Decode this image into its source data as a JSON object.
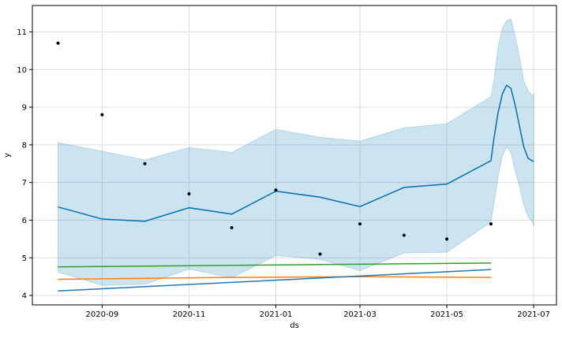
{
  "chart_data": {
    "type": "line",
    "title": "",
    "xlabel": "ds",
    "ylabel": "y",
    "x_tick_labels": [
      "2020-09",
      "2020-11",
      "2021-01",
      "2021-03",
      "2021-05",
      "2021-07"
    ],
    "y_tick_labels": [
      "4",
      "5",
      "6",
      "7",
      "8",
      "9",
      "10",
      "11"
    ],
    "xlim": [
      "2020-07-14",
      "2021-07-17"
    ],
    "ylim": [
      3.75,
      11.7
    ],
    "grid": true,
    "colors": {
      "observed": "#000000",
      "forecast_line": "#0072B2",
      "forecast_band": "#0072B2",
      "line_blue": "#1f77b4",
      "line_orange": "#ff7f0e",
      "line_green": "#2ca02c",
      "grid": "#dddddd"
    },
    "observed_points": [
      {
        "x": "2020-08-01",
        "y": 10.7
      },
      {
        "x": "2020-09-01",
        "y": 8.8
      },
      {
        "x": "2020-10-01",
        "y": 7.5
      },
      {
        "x": "2020-11-01",
        "y": 6.7
      },
      {
        "x": "2020-12-01",
        "y": 5.8
      },
      {
        "x": "2021-01-01",
        "y": 6.8
      },
      {
        "x": "2021-02-01",
        "y": 5.1
      },
      {
        "x": "2021-03-01",
        "y": 5.9
      },
      {
        "x": "2021-04-01",
        "y": 5.6
      },
      {
        "x": "2021-05-01",
        "y": 5.5
      },
      {
        "x": "2021-06-01",
        "y": 5.9
      }
    ],
    "forecast": [
      {
        "x": "2020-08-01",
        "y": 6.35,
        "lower": 4.62,
        "upper": 8.06
      },
      {
        "x": "2020-09-01",
        "y": 6.03,
        "lower": 4.27,
        "upper": 7.83
      },
      {
        "x": "2020-10-01",
        "y": 5.97,
        "lower": 4.3,
        "upper": 7.6
      },
      {
        "x": "2020-11-01",
        "y": 6.33,
        "lower": 4.7,
        "upper": 7.93
      },
      {
        "x": "2020-12-01",
        "y": 6.16,
        "lower": 4.47,
        "upper": 7.8
      },
      {
        "x": "2021-01-01",
        "y": 6.77,
        "lower": 5.06,
        "upper": 8.41
      },
      {
        "x": "2021-02-01",
        "y": 6.61,
        "lower": 4.96,
        "upper": 8.2
      },
      {
        "x": "2021-03-01",
        "y": 6.36,
        "lower": 4.66,
        "upper": 8.1
      },
      {
        "x": "2021-04-01",
        "y": 6.87,
        "lower": 5.13,
        "upper": 8.45
      },
      {
        "x": "2021-05-01",
        "y": 6.96,
        "lower": 5.15,
        "upper": 8.56
      },
      {
        "x": "2021-06-01",
        "y": 7.58,
        "lower": 5.95,
        "upper": 9.28
      },
      {
        "x": "2021-06-03",
        "y": 8.15,
        "lower": 6.4,
        "upper": 9.7
      },
      {
        "x": "2021-06-06",
        "y": 8.85,
        "lower": 7.15,
        "upper": 10.6
      },
      {
        "x": "2021-06-09",
        "y": 9.35,
        "lower": 7.7,
        "upper": 11.1
      },
      {
        "x": "2021-06-12",
        "y": 9.58,
        "lower": 7.95,
        "upper": 11.3
      },
      {
        "x": "2021-06-15",
        "y": 9.5,
        "lower": 7.8,
        "upper": 11.35
      },
      {
        "x": "2021-06-18",
        "y": 9.05,
        "lower": 7.3,
        "upper": 10.9
      },
      {
        "x": "2021-06-21",
        "y": 8.5,
        "lower": 6.9,
        "upper": 10.35
      },
      {
        "x": "2021-06-24",
        "y": 7.95,
        "lower": 6.4,
        "upper": 9.7
      },
      {
        "x": "2021-06-27",
        "y": 7.65,
        "lower": 6.1,
        "upper": 9.45
      },
      {
        "x": "2021-06-30",
        "y": 7.57,
        "lower": 5.95,
        "upper": 9.3
      },
      {
        "x": "2021-07-01",
        "y": 7.57,
        "lower": 5.85,
        "upper": 9.35
      }
    ],
    "series": [
      {
        "color": "#2ca02c",
        "points": [
          {
            "x": "2020-08-01",
            "y": 4.76
          },
          {
            "x": "2021-06-01",
            "y": 4.86
          }
        ]
      },
      {
        "color": "#ff7f0e",
        "points": [
          {
            "x": "2020-08-01",
            "y": 4.43
          },
          {
            "x": "2020-12-01",
            "y": 4.48
          },
          {
            "x": "2021-03-01",
            "y": 4.5
          },
          {
            "x": "2021-06-01",
            "y": 4.48
          }
        ]
      },
      {
        "color": "#1f77b4",
        "points": [
          {
            "x": "2020-08-01",
            "y": 4.12
          },
          {
            "x": "2021-06-01",
            "y": 4.69
          }
        ]
      }
    ]
  }
}
